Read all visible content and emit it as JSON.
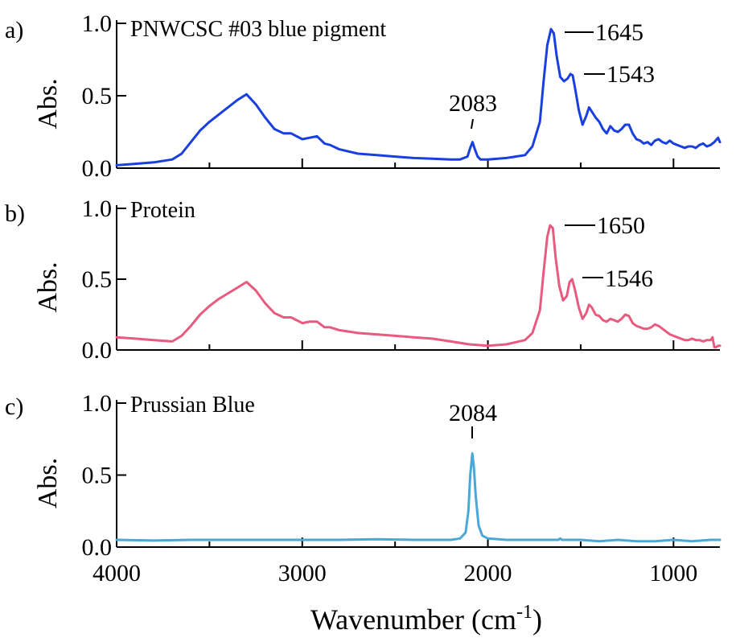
{
  "chart_data": [
    {
      "type": "line",
      "panel_label": "a)",
      "title": "PNWCSC #03 blue pigment",
      "ylabel": "Abs.",
      "xlabel": "",
      "xlim": [
        4000,
        750
      ],
      "ylim": [
        0,
        1.0
      ],
      "y_ticks": [
        "0.0",
        "0.5",
        "1.0"
      ],
      "color": "#1a3fe0",
      "x": [
        4000,
        3900,
        3800,
        3700,
        3650,
        3600,
        3550,
        3500,
        3450,
        3400,
        3350,
        3300,
        3250,
        3200,
        3150,
        3100,
        3060,
        3000,
        2960,
        2920,
        2880,
        2850,
        2800,
        2700,
        2600,
        2500,
        2400,
        2300,
        2200,
        2150,
        2110,
        2095,
        2083,
        2070,
        2055,
        2040,
        2000,
        1900,
        1800,
        1760,
        1720,
        1700,
        1680,
        1660,
        1645,
        1630,
        1610,
        1590,
        1570,
        1555,
        1543,
        1530,
        1510,
        1490,
        1470,
        1455,
        1440,
        1420,
        1400,
        1380,
        1360,
        1340,
        1320,
        1300,
        1280,
        1260,
        1240,
        1220,
        1200,
        1180,
        1160,
        1140,
        1120,
        1100,
        1080,
        1060,
        1040,
        1020,
        1000,
        980,
        960,
        940,
        920,
        900,
        880,
        860,
        840,
        820,
        800,
        780,
        760,
        750
      ],
      "values": [
        0.02,
        0.03,
        0.04,
        0.06,
        0.1,
        0.18,
        0.26,
        0.32,
        0.37,
        0.42,
        0.47,
        0.51,
        0.44,
        0.35,
        0.27,
        0.24,
        0.24,
        0.2,
        0.21,
        0.22,
        0.17,
        0.16,
        0.13,
        0.1,
        0.09,
        0.08,
        0.07,
        0.065,
        0.06,
        0.06,
        0.08,
        0.14,
        0.18,
        0.13,
        0.08,
        0.06,
        0.06,
        0.07,
        0.09,
        0.15,
        0.32,
        0.6,
        0.85,
        0.96,
        0.93,
        0.78,
        0.63,
        0.6,
        0.62,
        0.65,
        0.64,
        0.55,
        0.4,
        0.3,
        0.36,
        0.42,
        0.39,
        0.35,
        0.32,
        0.27,
        0.24,
        0.29,
        0.26,
        0.25,
        0.27,
        0.3,
        0.3,
        0.24,
        0.2,
        0.19,
        0.17,
        0.18,
        0.16,
        0.19,
        0.2,
        0.18,
        0.17,
        0.19,
        0.17,
        0.16,
        0.15,
        0.14,
        0.15,
        0.15,
        0.14,
        0.16,
        0.17,
        0.15,
        0.16,
        0.18,
        0.21,
        0.18
      ],
      "annotations": [
        {
          "text": "2083",
          "x": 2083
        },
        {
          "text": "1645",
          "x": 1645
        },
        {
          "text": "1543",
          "x": 1543
        }
      ]
    },
    {
      "type": "line",
      "panel_label": "b)",
      "title": "Protein",
      "ylabel": "Abs.",
      "xlabel": "",
      "xlim": [
        4000,
        750
      ],
      "ylim": [
        0,
        1.0
      ],
      "y_ticks": [
        "0.0",
        "0.5",
        "1.0"
      ],
      "color": "#e85a7e",
      "x": [
        4000,
        3900,
        3800,
        3700,
        3650,
        3600,
        3550,
        3500,
        3450,
        3400,
        3350,
        3300,
        3250,
        3200,
        3150,
        3100,
        3060,
        3000,
        2960,
        2920,
        2880,
        2850,
        2800,
        2700,
        2600,
        2500,
        2400,
        2300,
        2200,
        2100,
        2000,
        1900,
        1800,
        1760,
        1720,
        1700,
        1680,
        1665,
        1650,
        1635,
        1615,
        1595,
        1575,
        1560,
        1546,
        1530,
        1510,
        1490,
        1470,
        1455,
        1440,
        1420,
        1400,
        1380,
        1360,
        1340,
        1320,
        1300,
        1280,
        1260,
        1240,
        1220,
        1200,
        1180,
        1160,
        1140,
        1120,
        1100,
        1080,
        1060,
        1040,
        1020,
        1000,
        980,
        960,
        940,
        920,
        900,
        880,
        860,
        840,
        820,
        800,
        790,
        780,
        770,
        760,
        750
      ],
      "values": [
        0.09,
        0.08,
        0.07,
        0.06,
        0.1,
        0.17,
        0.25,
        0.31,
        0.36,
        0.4,
        0.44,
        0.48,
        0.42,
        0.33,
        0.26,
        0.23,
        0.23,
        0.19,
        0.2,
        0.2,
        0.16,
        0.16,
        0.14,
        0.12,
        0.11,
        0.1,
        0.09,
        0.08,
        0.06,
        0.04,
        0.03,
        0.04,
        0.07,
        0.12,
        0.28,
        0.55,
        0.8,
        0.88,
        0.86,
        0.65,
        0.45,
        0.35,
        0.38,
        0.48,
        0.5,
        0.42,
        0.3,
        0.22,
        0.26,
        0.32,
        0.3,
        0.25,
        0.24,
        0.21,
        0.2,
        0.22,
        0.21,
        0.2,
        0.22,
        0.25,
        0.24,
        0.19,
        0.17,
        0.16,
        0.15,
        0.15,
        0.16,
        0.18,
        0.17,
        0.15,
        0.13,
        0.11,
        0.1,
        0.09,
        0.08,
        0.07,
        0.07,
        0.08,
        0.07,
        0.07,
        0.06,
        0.07,
        0.07,
        0.09,
        0.02,
        0.02,
        0.03,
        0.03
      ],
      "annotations": [
        {
          "text": "1650",
          "x": 1650
        },
        {
          "text": "1546",
          "x": 1546
        }
      ]
    },
    {
      "type": "line",
      "panel_label": "c)",
      "title": "Prussian Blue",
      "ylabel": "Abs.",
      "xlabel": "Wavenumber (cm",
      "xlabel_superscript": "-1",
      "xlabel_suffix": ")",
      "xlim": [
        4000,
        750
      ],
      "ylim": [
        0,
        1.0
      ],
      "y_ticks": [
        "0.0",
        "0.5",
        "1.0"
      ],
      "x_ticks": [
        "4000",
        "3000",
        "2000",
        "1000"
      ],
      "color": "#4aa8d8",
      "x": [
        4000,
        3800,
        3600,
        3400,
        3200,
        3000,
        2800,
        2600,
        2400,
        2300,
        2200,
        2150,
        2120,
        2105,
        2095,
        2084,
        2075,
        2065,
        2050,
        2030,
        2000,
        1900,
        1800,
        1700,
        1620,
        1610,
        1600,
        1500,
        1400,
        1300,
        1200,
        1100,
        1000,
        900,
        800,
        750
      ],
      "values": [
        0.05,
        0.045,
        0.05,
        0.05,
        0.05,
        0.05,
        0.05,
        0.055,
        0.05,
        0.05,
        0.05,
        0.06,
        0.1,
        0.25,
        0.5,
        0.65,
        0.55,
        0.35,
        0.15,
        0.08,
        0.06,
        0.05,
        0.05,
        0.05,
        0.05,
        0.06,
        0.05,
        0.05,
        0.04,
        0.05,
        0.04,
        0.04,
        0.05,
        0.04,
        0.05,
        0.05
      ],
      "annotations": [
        {
          "text": "2084",
          "x": 2084
        }
      ]
    }
  ]
}
